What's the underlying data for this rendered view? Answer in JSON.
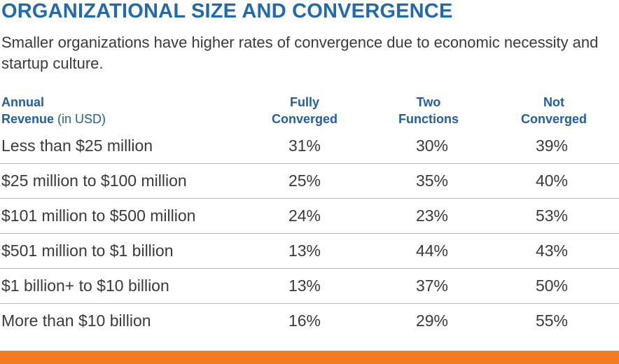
{
  "title": "ORGANIZATIONAL SIZE AND CONVERGENCE",
  "subtitle": "Smaller organizations have higher rates of convergence due to economic necessity and startup culture.",
  "header": {
    "revenue_line1": "Annual",
    "revenue_line2": "Revenue",
    "revenue_note": " (in USD)",
    "col1_line1": "Fully",
    "col1_line2": "Converged",
    "col2_line1": "Two",
    "col2_line2": "Functions",
    "col3_line1": "Not",
    "col3_line2": "Converged"
  },
  "chart_data": {
    "type": "table",
    "columns": [
      "Fully Converged",
      "Two Functions",
      "Not Converged"
    ],
    "rows": [
      {
        "label": "Less than $25 million",
        "values": [
          "31%",
          "30%",
          "39%"
        ]
      },
      {
        "label": "$25 million to $100 million",
        "values": [
          "25%",
          "35%",
          "40%"
        ]
      },
      {
        "label": "$101 million to $500 million",
        "values": [
          "24%",
          "23%",
          "53%"
        ]
      },
      {
        "label": "$501 million to $1 billion",
        "values": [
          "13%",
          "44%",
          "43%"
        ]
      },
      {
        "label": "$1 billion+ to $10 billion",
        "values": [
          "13%",
          "37%",
          "50%"
        ]
      },
      {
        "label": "More than $10 billion",
        "values": [
          "16%",
          "29%",
          "55%"
        ]
      }
    ]
  },
  "colors": {
    "title": "#1f6ab1",
    "header": "#1f5fa8",
    "text": "#3a3a3a",
    "separator": "#b9b9b9",
    "accent_bar": "#f47c20"
  }
}
